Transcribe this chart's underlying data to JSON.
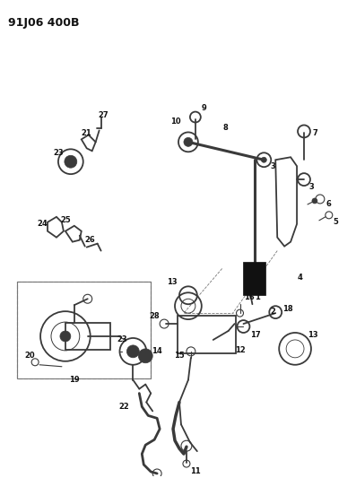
{
  "title": "91J06 400B",
  "bg_color": "#ffffff",
  "fig_w": 3.97,
  "fig_h": 5.33,
  "dpi": 100,
  "gray": "#3a3a3a",
  "dark": "#111111",
  "med": "#777777",
  "lw_thick": 2.2,
  "lw_med": 1.3,
  "lw_thin": 0.8,
  "label_fs": 6.0
}
